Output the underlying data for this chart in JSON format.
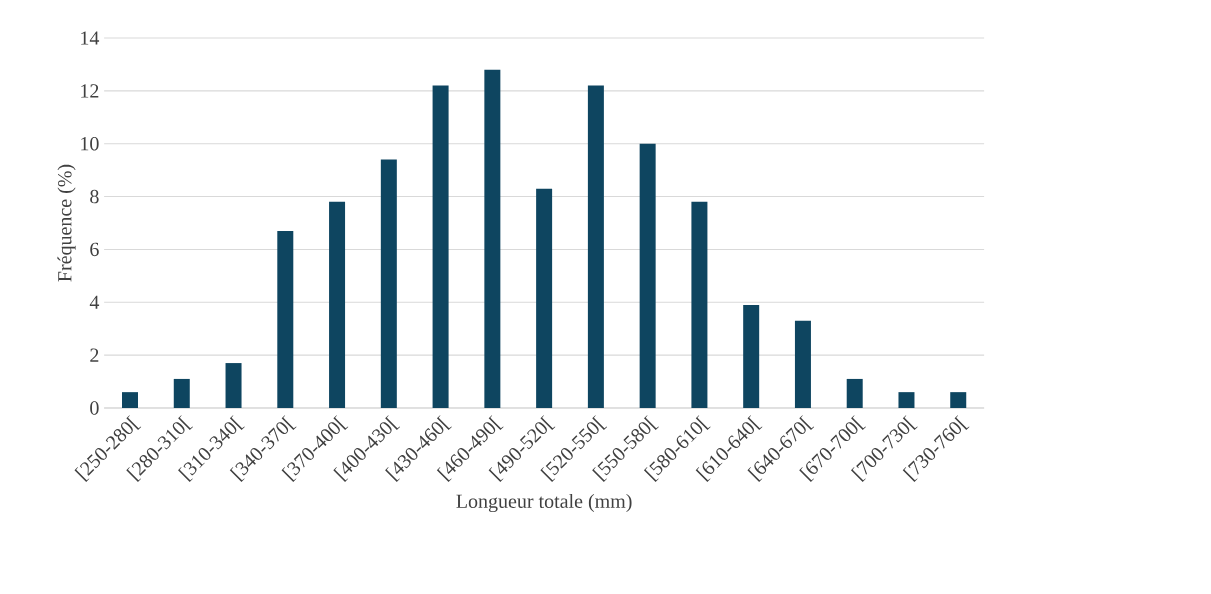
{
  "chart_data": {
    "type": "bar",
    "xlabel": "Longueur totale (mm)",
    "ylabel": "Fréquence (%)",
    "categories": [
      "[250-280[",
      "[280-310[",
      "[310-340[",
      "[340-370[",
      "[370-400[",
      "[400-430[",
      "[430-460[",
      "[460-490[",
      "[490-520[",
      "[520-550[",
      "[550-580[",
      "[580-610[",
      "[610-640[",
      "[640-670[",
      "[670-700[",
      "[700-730[",
      "[730-760["
    ],
    "values": [
      0.6,
      1.1,
      1.7,
      6.7,
      7.8,
      9.4,
      12.2,
      12.8,
      8.3,
      12.2,
      10,
      7.8,
      3.9,
      3.3,
      1.1,
      0.6,
      0.6
    ],
    "color": "#0e4560",
    "ylim": [
      0,
      14
    ],
    "yticks": [
      0,
      2,
      4,
      6,
      8,
      10,
      12,
      14
    ],
    "grid": "y"
  }
}
